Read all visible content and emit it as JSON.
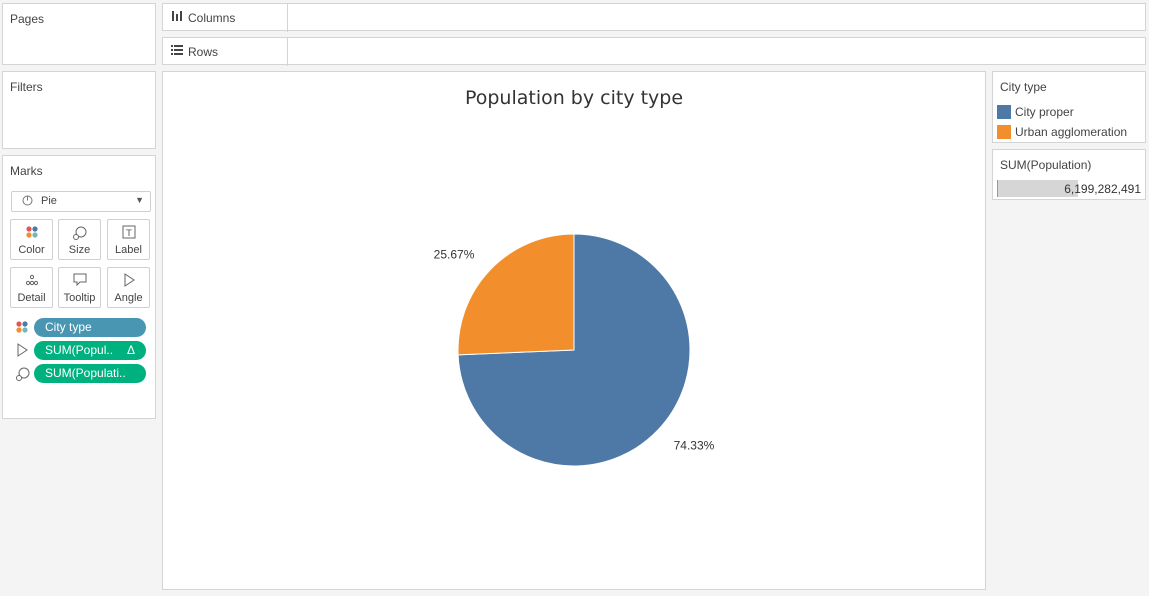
{
  "pages": {
    "title": "Pages"
  },
  "filters": {
    "title": "Filters"
  },
  "marks": {
    "title": "Marks",
    "mark_type": "Pie",
    "buttons": [
      {
        "label": "Color",
        "icon": "color-dots-icon"
      },
      {
        "label": "Size",
        "icon": "size-icon"
      },
      {
        "label": "Label",
        "icon": "label-icon"
      },
      {
        "label": "Detail",
        "icon": "detail-icon"
      },
      {
        "label": "Tooltip",
        "icon": "tooltip-icon"
      },
      {
        "label": "Angle",
        "icon": "angle-icon"
      }
    ],
    "pills": [
      {
        "label": "City type",
        "color": "#4996b2",
        "icon": "color-dots-icon"
      },
      {
        "label": "SUM(Popul..",
        "delta": "Δ",
        "color": "#00b180",
        "icon": "angle-icon"
      },
      {
        "label": "SUM(Populati..",
        "color": "#00b180",
        "icon": "size-icon"
      }
    ]
  },
  "shelves": {
    "columns": "Columns",
    "rows": "Rows"
  },
  "legend": {
    "title": "City type",
    "items": [
      {
        "label": "City proper",
        "color": "#4e79a7"
      },
      {
        "label": "Urban agglomeration",
        "color": "#f28e2b"
      }
    ]
  },
  "size_legend": {
    "title": "SUM(Population)",
    "value": "6,199,282,491"
  },
  "chart_data": {
    "type": "pie",
    "title": "Population by city type",
    "slices": [
      {
        "name": "City proper",
        "value": 74.33,
        "label": "74.33%",
        "color": "#4e79a7"
      },
      {
        "name": "Urban agglomeration",
        "value": 25.67,
        "label": "25.67%",
        "color": "#f28e2b"
      }
    ]
  }
}
